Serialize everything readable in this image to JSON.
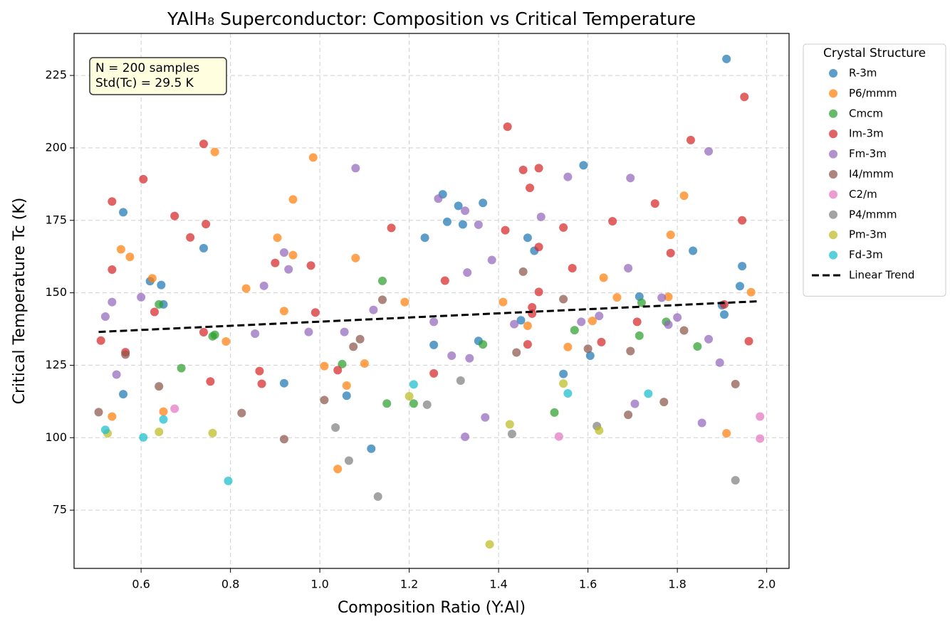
{
  "chart_data": {
    "type": "scatter",
    "title": "YAlH₈ Superconductor: Composition vs Critical Temperature",
    "x_label": "Composition Ratio (Y:Al)",
    "y_label": "Critical Temperature Tc (K)",
    "annotation": [
      "N = 200 samples",
      "Std(Tc) = 29.5 K"
    ],
    "legend_title": "Crystal Structure",
    "legend_position": "outside-upper-right",
    "grid": true,
    "xlim": [
      0.45,
      2.05
    ],
    "ylim": [
      54.9,
      239.5
    ],
    "xticks": [
      0.6,
      0.8,
      {
        "value": 1,
        "label": "1.0"
      },
      1.2,
      1.4,
      1.6,
      1.8,
      {
        "value": 2,
        "label": "2.0"
      }
    ],
    "yticks": [
      75,
      100,
      125,
      150,
      175,
      200,
      225
    ],
    "series": [
      {
        "name": "R-3m",
        "color": "#1f77b4",
        "x": [
          1.91,
          0.56,
          0.74,
          0.62,
          0.645,
          0.65,
          0.56,
          0.92,
          1.06,
          1.115,
          1.235,
          1.255,
          1.275,
          1.285,
          1.31,
          1.32,
          1.355,
          1.365,
          1.45,
          1.465,
          1.48,
          1.545,
          1.59,
          1.605,
          1.715,
          1.835,
          1.9,
          1.905,
          1.94,
          1.945
        ],
        "values": [
          230.7,
          177.8,
          165.4,
          154,
          152.7,
          146,
          115,
          118.8,
          114.5,
          96.2,
          169,
          132,
          184,
          174.5,
          180,
          173.6,
          133.4,
          181,
          140.5,
          169,
          164.5,
          122,
          194,
          128.3,
          148.7,
          164.5,
          145.7,
          142.5,
          152.3,
          159.2
        ]
      },
      {
        "name": "P6/mmm",
        "color": "#ff7f0e",
        "x": [
          0.535,
          0.555,
          0.575,
          0.625,
          0.65,
          0.765,
          0.79,
          0.835,
          0.905,
          0.92,
          0.94,
          0.94,
          0.985,
          1.01,
          1.04,
          1.06,
          1.08,
          1.1,
          1.19,
          1.41,
          1.465,
          1.555,
          1.61,
          1.635,
          1.665,
          1.78,
          1.785,
          1.815,
          1.91,
          1.965
        ],
        "values": [
          107.3,
          165,
          162.4,
          155,
          109,
          198.6,
          133.2,
          151.5,
          169,
          143.7,
          182.2,
          163,
          196.7,
          124.7,
          89.2,
          118,
          162,
          125.6,
          146.8,
          146.8,
          138.6,
          131.3,
          140.3,
          155.2,
          148.4,
          148.6,
          170,
          183.5,
          101.5,
          150.2
        ]
      },
      {
        "name": "Cmcm",
        "color": "#2ca02c",
        "x": [
          0.64,
          0.69,
          0.76,
          0.765,
          1.05,
          1.14,
          1.15,
          1.21,
          1.365,
          1.525,
          1.57,
          1.715,
          1.72,
          1.775,
          1.845
        ],
        "values": [
          146,
          124,
          135,
          135.5,
          125.4,
          154.1,
          111.8,
          111.8,
          132.2,
          108.7,
          137.1,
          135.2,
          146.6,
          140,
          131.5
        ]
      },
      {
        "name": "Im-3m",
        "color": "#d62728",
        "x": [
          0.51,
          0.535,
          0.535,
          0.565,
          0.605,
          0.63,
          0.675,
          0.71,
          0.74,
          0.74,
          0.745,
          0.755,
          0.865,
          0.87,
          0.9,
          0.98,
          0.99,
          1.04,
          1.16,
          1.255,
          1.28,
          1.415,
          1.42,
          1.455,
          1.465,
          1.47,
          1.475,
          1.475,
          1.49,
          1.49,
          1.49,
          1.545,
          1.565,
          1.63,
          1.655,
          1.71,
          1.75,
          1.785,
          1.83,
          1.905,
          1.945,
          1.95,
          1.96
        ],
        "values": [
          133.5,
          181.5,
          158,
          129.5,
          189.2,
          143.4,
          176.5,
          169.1,
          136.4,
          201.4,
          173.7,
          119.4,
          123,
          118.6,
          160.3,
          159.4,
          143.2,
          123.3,
          172.4,
          122.2,
          154.2,
          171.6,
          207.3,
          192.4,
          132.2,
          186.2,
          145,
          142.8,
          193,
          165.8,
          150.3,
          172.5,
          158.5,
          133,
          174.7,
          140,
          180.8,
          163.7,
          202.7,
          146,
          175,
          217.6,
          133.3
        ]
      },
      {
        "name": "Fm-3m",
        "color": "#9467bd",
        "x": [
          0.52,
          0.535,
          0.545,
          0.6,
          0.855,
          0.875,
          0.92,
          0.93,
          0.975,
          1.055,
          1.08,
          1.12,
          1.265,
          1.255,
          1.295,
          1.325,
          1.325,
          1.33,
          1.335,
          1.355,
          1.37,
          1.385,
          1.435,
          1.495,
          1.555,
          1.585,
          1.625,
          1.69,
          1.695,
          1.705,
          1.765,
          1.78,
          1.8,
          1.855,
          1.87,
          1.87,
          1.895
        ],
        "values": [
          141.8,
          146.8,
          121.8,
          148.5,
          135.9,
          152.4,
          163.9,
          158.1,
          136.5,
          136.5,
          193,
          144.1,
          182.5,
          140,
          128.3,
          178.3,
          100.3,
          157,
          127.4,
          173.5,
          107,
          161.3,
          139.2,
          176.2,
          190,
          140,
          142,
          158.5,
          189.6,
          111.7,
          148.3,
          139,
          141.5,
          105.1,
          198.8,
          134,
          125.9
        ]
      },
      {
        "name": "I4/mmm",
        "color": "#8c564b",
        "x": [
          0.505,
          0.565,
          0.64,
          0.825,
          0.92,
          1.01,
          1.075,
          1.09,
          1.14,
          1.44,
          1.455,
          1.545,
          1.6,
          1.695,
          1.69,
          1.77,
          1.815,
          1.93
        ],
        "values": [
          108.8,
          128.7,
          117.7,
          108.5,
          99.5,
          113,
          131.4,
          134,
          147.6,
          129.4,
          157.3,
          147.8,
          130.7,
          129.9,
          107.9,
          112.3,
          137,
          118.5
        ]
      },
      {
        "name": "C2/m",
        "color": "#e377c2",
        "x": [
          0.675,
          1.535,
          1.985,
          1.985
        ],
        "values": [
          110,
          100.4,
          107.3,
          99.7
        ]
      },
      {
        "name": "P4/mmm",
        "color": "#7f7f7f",
        "x": [
          1.035,
          1.065,
          1.13,
          1.24,
          1.315,
          1.43,
          1.62,
          1.93
        ],
        "values": [
          103.5,
          92.1,
          79.7,
          111.4,
          119.7,
          101.3,
          104,
          85.3
        ]
      },
      {
        "name": "Pm-3m",
        "color": "#bcbd22",
        "x": [
          0.525,
          0.64,
          0.76,
          1.2,
          1.38,
          1.425,
          1.545,
          1.625
        ],
        "values": [
          101.5,
          102,
          101.6,
          114.3,
          63.2,
          104.6,
          118.7,
          102.5
        ]
      },
      {
        "name": "Fd-3m",
        "color": "#17becf",
        "x": [
          0.52,
          0.605,
          0.65,
          0.795,
          1.21,
          1.555,
          1.735
        ],
        "values": [
          102.7,
          100.1,
          106.3,
          85.1,
          118.4,
          115.3,
          115.2
        ]
      }
    ],
    "trend": {
      "name": "Linear Trend",
      "color": "#000000",
      "x": [
        0.505,
        1.985
      ],
      "values": [
        136.5,
        147.1
      ]
    }
  }
}
